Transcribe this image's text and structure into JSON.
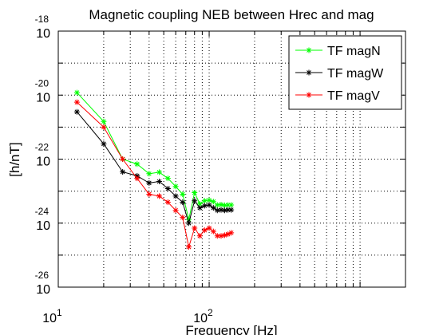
{
  "chart_data": {
    "type": "line",
    "title": "Magnetic coupling NEB between Hrec and mag",
    "xlabel": "Frequency [Hz]",
    "ylabel": "[h/nT]",
    "xscale": "log",
    "yscale": "log",
    "xlim": [
      10,
      2000
    ],
    "ylim": [
      1e-26,
      1e-18
    ],
    "x_ticks": [
      {
        "value": 10,
        "base": "10",
        "exp": "1"
      },
      {
        "value": 100,
        "base": "10",
        "exp": "2"
      }
    ],
    "y_ticks": [
      {
        "value": 1e-18,
        "base": "10",
        "exp": "-18"
      },
      {
        "value": 1e-20,
        "base": "10",
        "exp": "-20"
      },
      {
        "value": 1e-22,
        "base": "10",
        "exp": "-22"
      },
      {
        "value": 1e-24,
        "base": "10",
        "exp": "-24"
      },
      {
        "value": 1e-26,
        "base": "10",
        "exp": "-26"
      }
    ],
    "grid": true,
    "legend_position": "top-right",
    "x": [
      13.3,
      20,
      26.7,
      33.3,
      40,
      46.7,
      53.3,
      60,
      66.7,
      73.3,
      80,
      86.7,
      93.3,
      100,
      106.7,
      113.3,
      120,
      126.7,
      133.3,
      140
    ],
    "series": [
      {
        "name": "TF magN",
        "color": "#00ff00",
        "values": [
          1.2e-20,
          1.5e-21,
          1e-22,
          7e-23,
          3.5e-23,
          3.9e-23,
          2.5e-23,
          1.4e-23,
          8e-24,
          1.3e-24,
          9e-24,
          4e-24,
          5e-24,
          5.2e-24,
          4.7e-24,
          3.7e-24,
          3.8e-24,
          3.6e-24,
          3.7e-24,
          3.7e-24
        ]
      },
      {
        "name": "TF magW",
        "color": "#000000",
        "values": [
          3e-21,
          3e-22,
          4e-23,
          3e-23,
          1.8e-23,
          2e-23,
          1.2e-23,
          7e-24,
          4.5e-24,
          1e-24,
          5e-24,
          3e-24,
          3.5e-24,
          3.7e-24,
          3e-24,
          2.5e-24,
          2.6e-24,
          2.5e-24,
          2.6e-24,
          2.6e-24
        ]
      },
      {
        "name": "TF magV",
        "color": "#ff0000",
        "values": [
          6e-21,
          1e-21,
          1e-22,
          2.5e-23,
          8e-24,
          7e-24,
          4.5e-24,
          2.5e-24,
          1.5e-24,
          1.8e-25,
          7e-25,
          4e-25,
          6e-25,
          7e-25,
          5.5e-25,
          4e-25,
          4e-25,
          4.2e-25,
          4.5e-25,
          5e-25
        ]
      }
    ]
  }
}
